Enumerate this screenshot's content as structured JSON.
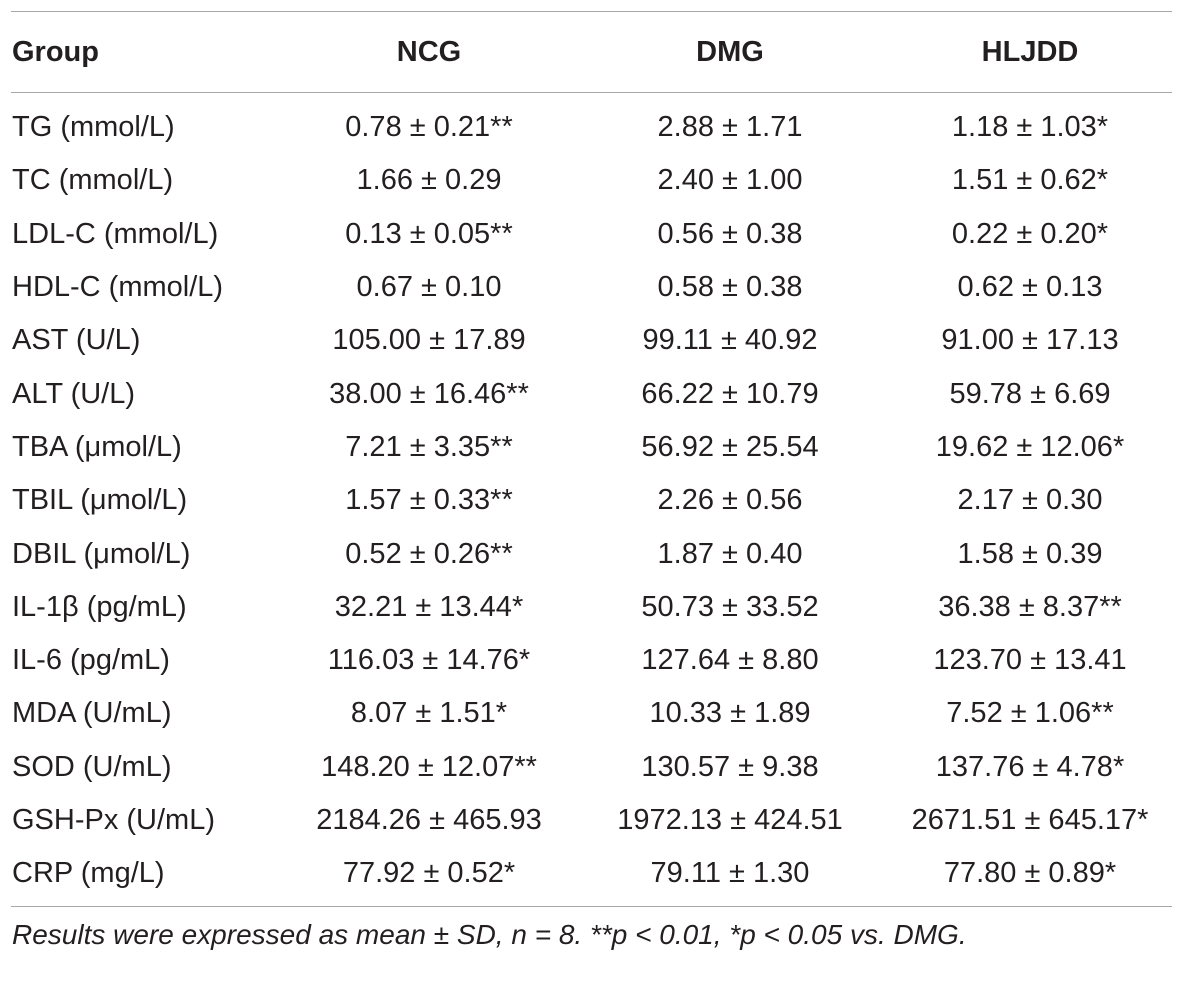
{
  "table": {
    "header": [
      "Group",
      "NCG",
      "DMG",
      "HLJDD"
    ],
    "rows": [
      {
        "label": "TG (mmol/L)",
        "ncg": "0.78 ± 0.21**",
        "dmg": "2.88 ± 1.71",
        "hljdd": "1.18 ± 1.03*"
      },
      {
        "label": "TC (mmol/L)",
        "ncg": "1.66 ± 0.29",
        "dmg": "2.40 ± 1.00",
        "hljdd": "1.51 ± 0.62*"
      },
      {
        "label": "LDL-C (mmol/L)",
        "ncg": "0.13 ± 0.05**",
        "dmg": "0.56 ± 0.38",
        "hljdd": "0.22 ± 0.20*"
      },
      {
        "label": "HDL-C (mmol/L)",
        "ncg": "0.67 ± 0.10",
        "dmg": "0.58 ± 0.38",
        "hljdd": "0.62 ± 0.13"
      },
      {
        "label": "AST (U/L)",
        "ncg": "105.00 ± 17.89",
        "dmg": "99.11 ± 40.92",
        "hljdd": "91.00 ± 17.13"
      },
      {
        "label": "ALT (U/L)",
        "ncg": "38.00 ± 16.46**",
        "dmg": "66.22 ± 10.79",
        "hljdd": "59.78 ± 6.69"
      },
      {
        "label": "TBA (μmol/L)",
        "ncg": "7.21 ± 3.35**",
        "dmg": "56.92 ± 25.54",
        "hljdd": "19.62 ± 12.06*"
      },
      {
        "label": "TBIL (μmol/L)",
        "ncg": "1.57 ± 0.33**",
        "dmg": "2.26 ± 0.56",
        "hljdd": "2.17 ± 0.30"
      },
      {
        "label": "DBIL (μmol/L)",
        "ncg": "0.52 ± 0.26**",
        "dmg": "1.87 ± 0.40",
        "hljdd": "1.58 ± 0.39"
      },
      {
        "label": "IL-1β (pg/mL)",
        "ncg": "32.21 ± 13.44*",
        "dmg": "50.73 ± 33.52",
        "hljdd": "36.38 ± 8.37**"
      },
      {
        "label": "IL-6 (pg/mL)",
        "ncg": "116.03 ± 14.76*",
        "dmg": "127.64 ± 8.80",
        "hljdd": "123.70 ± 13.41"
      },
      {
        "label": "MDA (U/mL)",
        "ncg": "8.07 ± 1.51*",
        "dmg": "10.33 ± 1.89",
        "hljdd": "7.52 ± 1.06**"
      },
      {
        "label": "SOD (U/mL)",
        "ncg": "148.20 ± 12.07**",
        "dmg": "130.57 ± 9.38",
        "hljdd": "137.76 ± 4.78*"
      },
      {
        "label": "GSH-Px (U/mL)",
        "ncg": "2184.26 ± 465.93",
        "dmg": "1972.13 ± 424.51",
        "hljdd": "2671.51 ± 645.17*"
      },
      {
        "label": "CRP (mg/L)",
        "ncg": "77.92 ± 0.52*",
        "dmg": "79.11 ± 1.30",
        "hljdd": "77.80 ± 0.89*"
      }
    ],
    "footnote": "Results were expressed as mean ± SD, n = 8. **p < 0.01, *p < 0.05 vs. DMG."
  }
}
